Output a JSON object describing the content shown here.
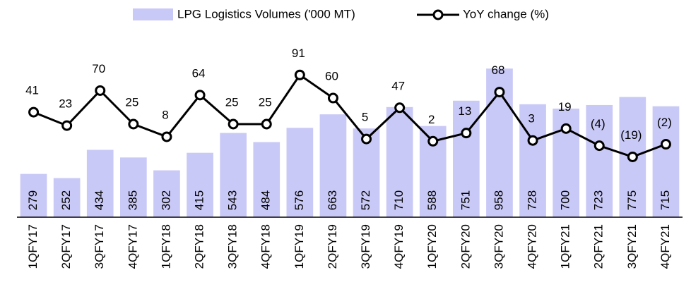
{
  "chart_data": {
    "type": "bar_line",
    "categories": [
      "1QFY17",
      "2QFY17",
      "3QFY17",
      "4QFY17",
      "1QFY18",
      "2QFY18",
      "3QFY18",
      "4QFY18",
      "1QFY19",
      "2QFY19",
      "3QFY19",
      "4QFY19",
      "1QFY20",
      "2QFY20",
      "3QFY20",
      "4QFY20",
      "1QFY21",
      "2QFY21",
      "3QFY21",
      "4QFY21"
    ],
    "series": [
      {
        "name": "LPG Logistics Volumes ('000 MT)",
        "type": "bar",
        "color": "#c9c9f7",
        "label_color": "#1f1f7a",
        "values": [
          279,
          252,
          434,
          385,
          302,
          415,
          543,
          484,
          576,
          663,
          572,
          710,
          588,
          751,
          958,
          728,
          700,
          723,
          775,
          715
        ]
      },
      {
        "name": "YoY change (%)",
        "type": "line",
        "axis": "y2",
        "color": "#000000",
        "negative_label_color": "#e0191e",
        "values": [
          41,
          23,
          70,
          25,
          8,
          64,
          25,
          25,
          91,
          60,
          5,
          47,
          2,
          13,
          68,
          3,
          19,
          -4,
          -19,
          -2
        ],
        "value_labels": [
          "41",
          "23",
          "70",
          "25",
          "8",
          "64",
          "25",
          "25",
          "91",
          "60",
          "5",
          "47",
          "2",
          "13",
          "68",
          "3",
          "19",
          "(4)",
          "(19)",
          "(2)"
        ]
      }
    ],
    "ylim": [
      0,
      1200
    ],
    "y2lim": [
      -100,
      150
    ],
    "legend": "top"
  }
}
